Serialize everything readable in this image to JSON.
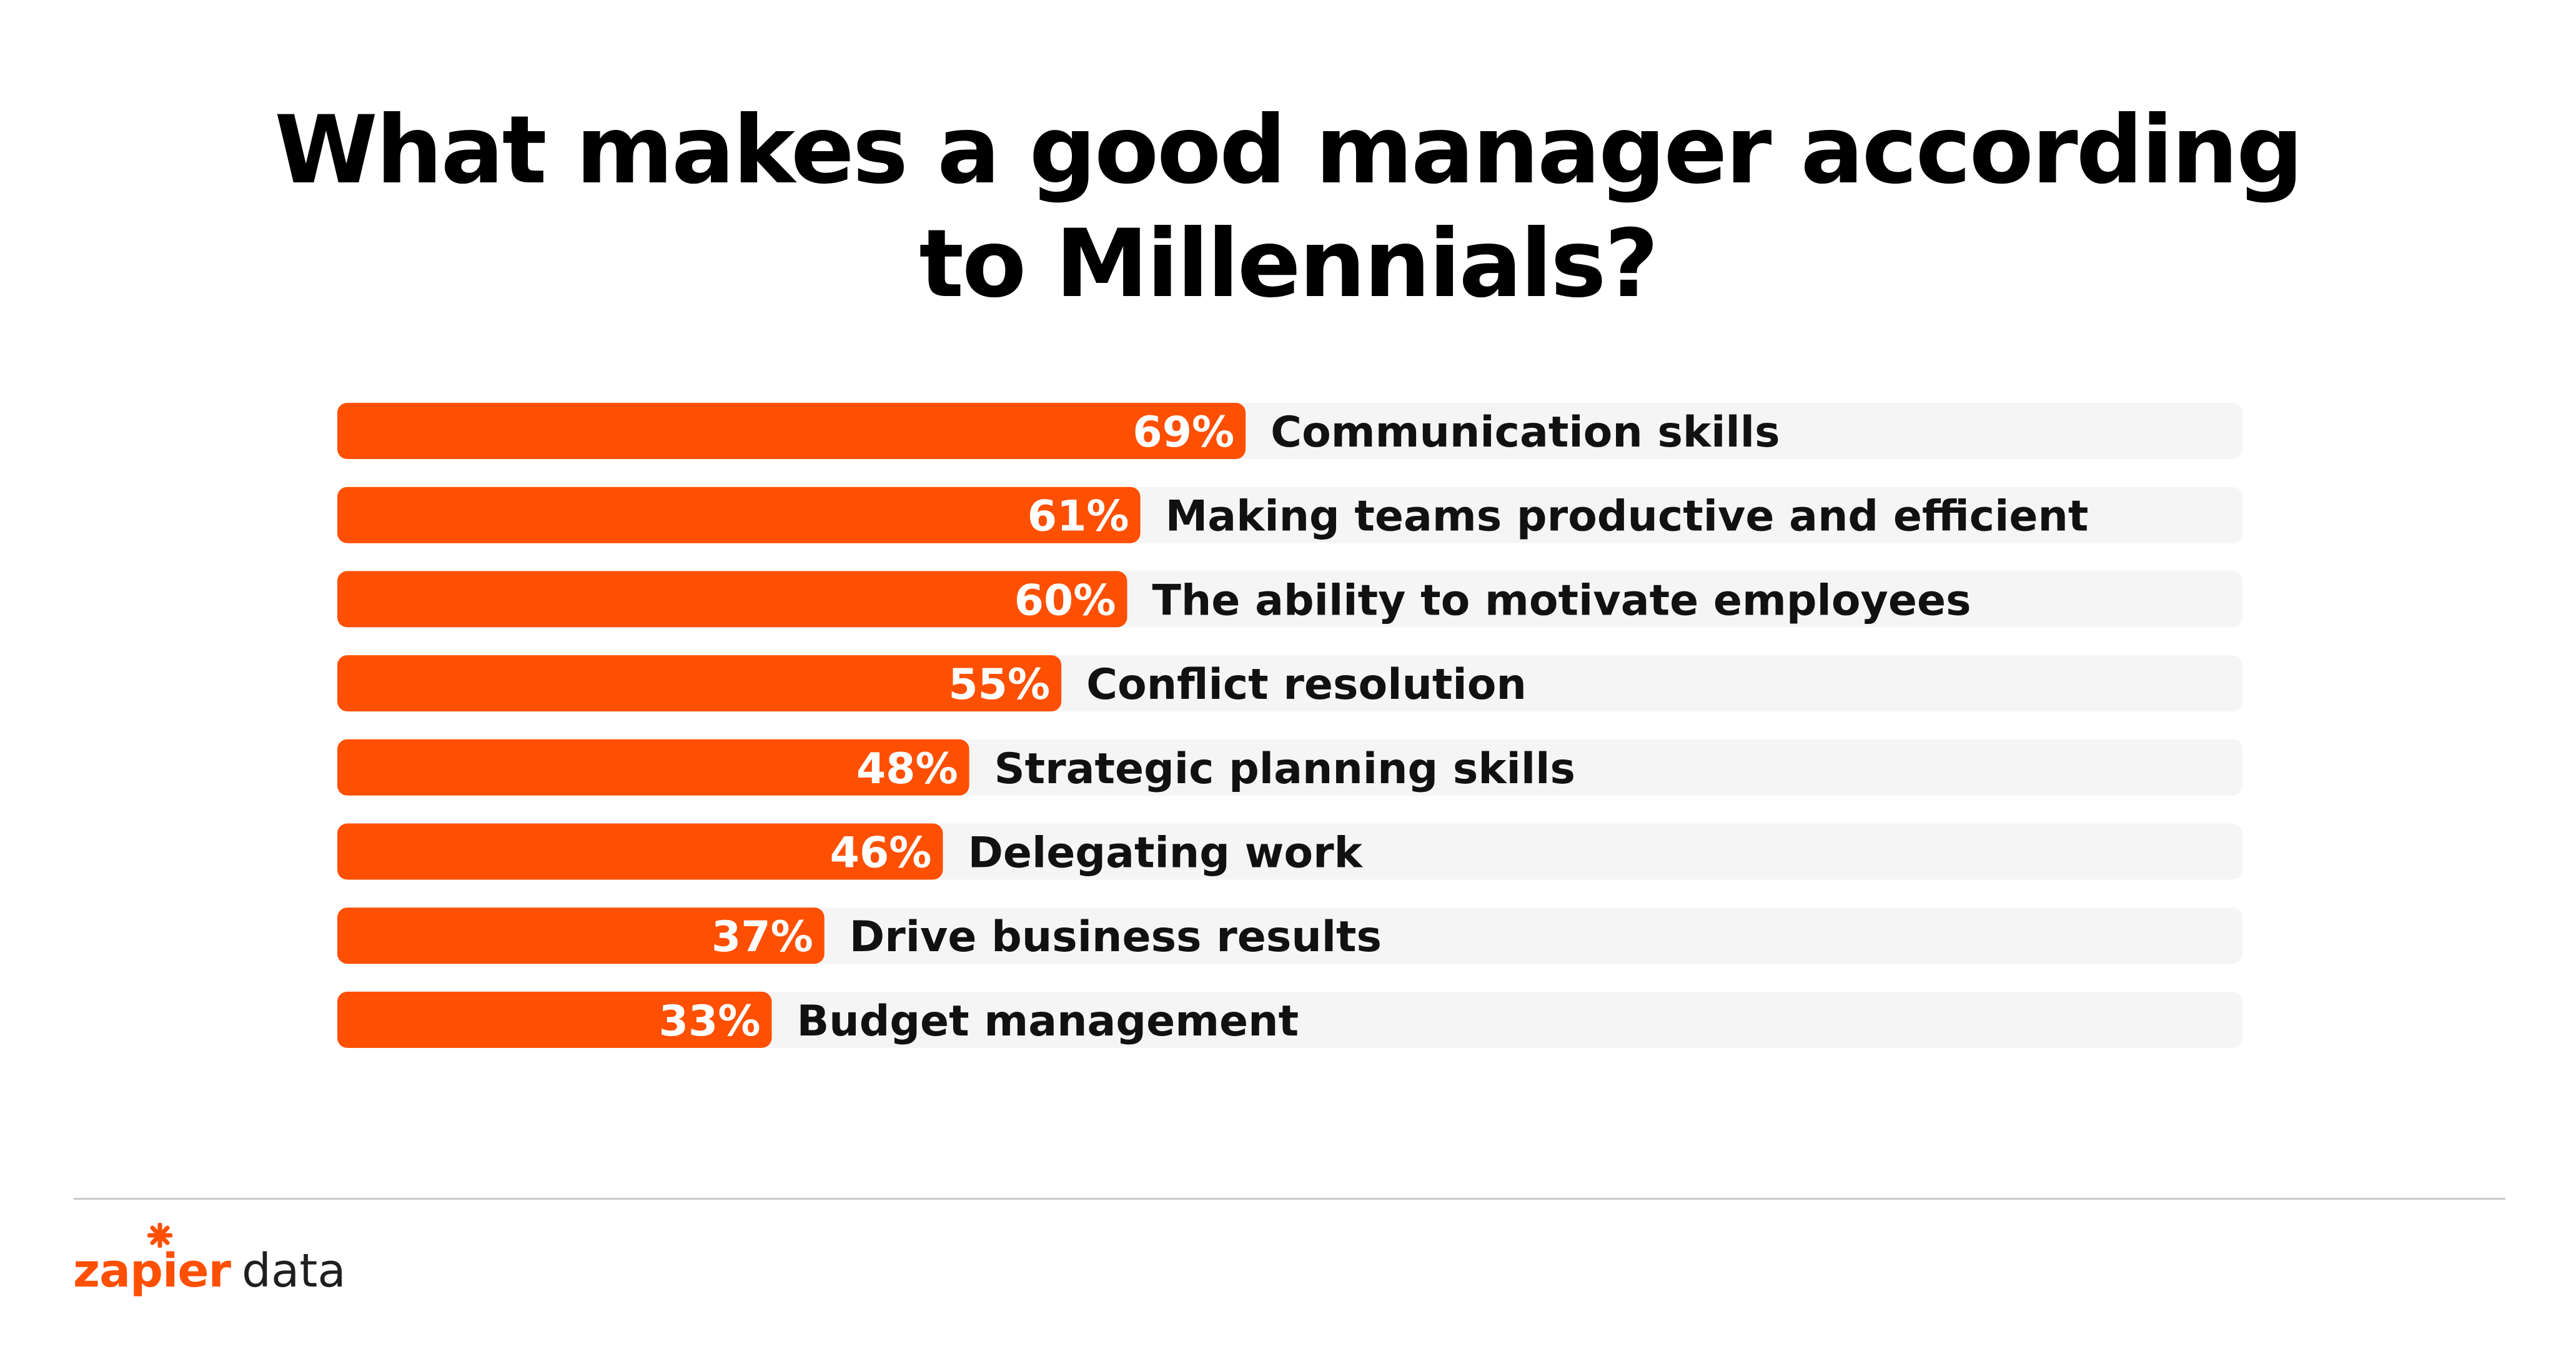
{
  "colors": {
    "bar": "#ff4f00",
    "track": "#f5f5f5",
    "value_text": "#ffffff",
    "label_text": "#111111",
    "brand": "#ff4f00"
  },
  "brand": {
    "name": "zapier",
    "suffix": "data",
    "icon": "zapier-asterisk-icon"
  },
  "chart_data": {
    "type": "bar",
    "orientation": "horizontal",
    "title": "What makes a good manager according to Millennials?",
    "title_lines": [
      "What makes a good manager according",
      "to Millennials?"
    ],
    "xlim": [
      0,
      100
    ],
    "grid": false,
    "legend": "none",
    "unit": "%",
    "categories": [
      "Communication skills",
      "Making teams productive and efficient",
      "The ability to motivate employees",
      "Conflict resolution",
      "Strategic planning skills",
      "Delegating work",
      "Drive business results",
      "Budget management"
    ],
    "values": [
      69,
      61,
      60,
      55,
      48,
      46,
      37,
      33
    ],
    "value_labels": [
      "69%",
      "61%",
      "60%",
      "55%",
      "48%",
      "46%",
      "37%",
      "33%"
    ]
  }
}
